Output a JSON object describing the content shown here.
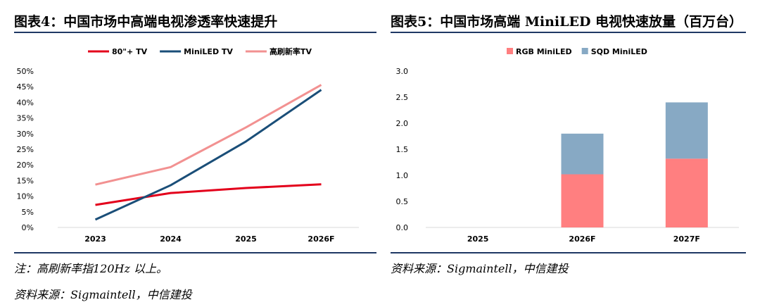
{
  "left_panel": {
    "title": "图表4：中国市场中高端电视渗透率快速提升",
    "note": "注：高刷新率指120Hz 以上。",
    "source": "资料来源：Sigmaintell，中信建投"
  },
  "right_panel": {
    "title": "图表5：中国市场高端 MiniLED 电视快速放量（百万台）",
    "source": "资料来源：Sigmaintell，中信建投"
  },
  "chart_data": [
    {
      "type": "line",
      "title": "",
      "x": [
        "2023",
        "2024",
        "2025",
        "2026F"
      ],
      "series": [
        {
          "name": "80\"+ TV",
          "color": "#e3001b",
          "values": [
            7.2,
            11.0,
            12.6,
            13.8
          ]
        },
        {
          "name": "MiniLED TV",
          "color": "#1a4e78",
          "values": [
            2.5,
            13.5,
            27.5,
            44.0
          ]
        },
        {
          "name": "高刷新率TV",
          "color": "#f29191",
          "values": [
            13.7,
            19.3,
            32.0,
            45.6
          ]
        }
      ],
      "y_ticks": [
        "0%",
        "5%",
        "10%",
        "15%",
        "20%",
        "25%",
        "30%",
        "35%",
        "40%",
        "45%",
        "50%"
      ],
      "ylim": [
        0,
        50
      ],
      "xlabel": "",
      "ylabel": "",
      "legend": "top"
    },
    {
      "type": "bar",
      "stacked": true,
      "title": "",
      "categories": [
        "2025",
        "2026F",
        "2027F"
      ],
      "series": [
        {
          "name": "RGB MiniLED",
          "color": "#ff7f80",
          "values": [
            0,
            1.02,
            1.32
          ]
        },
        {
          "name": "SQD MiniLED",
          "color": "#87a9c4",
          "values": [
            0,
            0.78,
            1.08
          ]
        }
      ],
      "y_ticks": [
        "0.0",
        "0.5",
        "1.0",
        "1.5",
        "2.0",
        "2.5",
        "3.0"
      ],
      "ylim": [
        0,
        3.0
      ],
      "xlabel": "",
      "ylabel": "",
      "legend": "top"
    }
  ]
}
